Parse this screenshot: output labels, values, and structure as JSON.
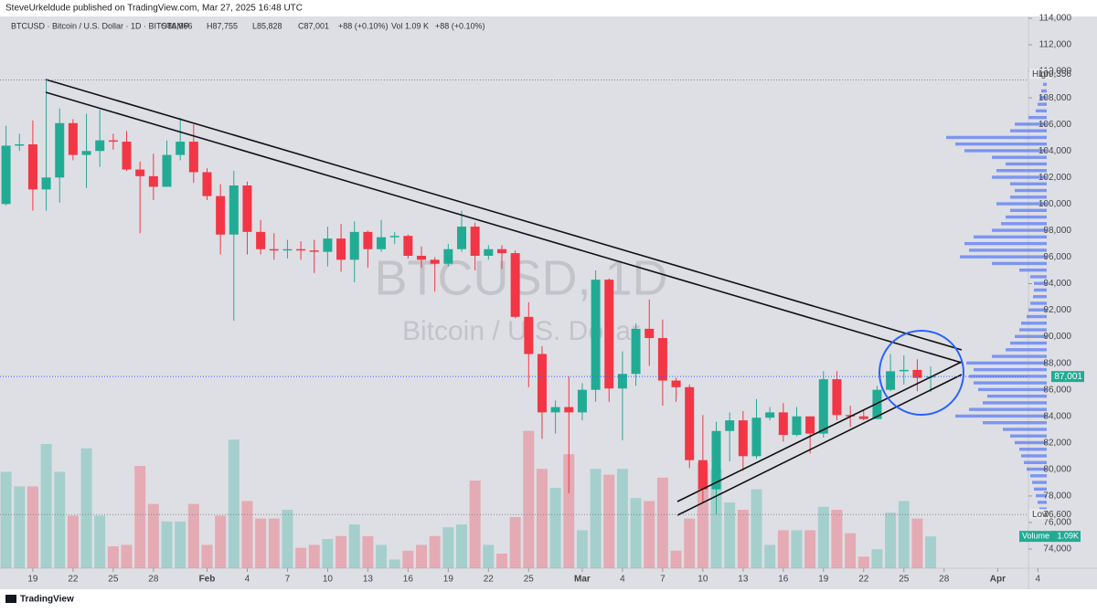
{
  "header": {
    "published": "SteveUrkeldude published on TradingView.com, Mar 27, 2025 16:48 UTC",
    "footer": "TradingView"
  },
  "chart_data": {
    "type": "candlestick",
    "legend": {
      "symbol": "BTCUSD · Bitcoin / U.S. Dollar · 1D · BITSTAMP",
      "open": "O86,966",
      "high": "H87,755",
      "low": "L85,828",
      "close": "C87,001",
      "change": "+88 (+0.10%)",
      "volume": "Vol 1.09 K",
      "volume_change": "+88 (+0.10%)"
    },
    "watermark": [
      "BTCUSD, 1D",
      "Bitcoin / U.S. Dollar"
    ],
    "up_color": "#22ab94",
    "down_color": "#f23645",
    "x": [
      -2,
      -1,
      0,
      1,
      2,
      3,
      4,
      5,
      6,
      7,
      8,
      9,
      10,
      11,
      12,
      13,
      14,
      15,
      16,
      17,
      18,
      19,
      20,
      21,
      22,
      23,
      24,
      25,
      26,
      27,
      28,
      29,
      30,
      31,
      32,
      33,
      34,
      35,
      36,
      37,
      38,
      39,
      40,
      41,
      42,
      43,
      44,
      45,
      46,
      47,
      48,
      49,
      50,
      51,
      52,
      53,
      54,
      55,
      56,
      57,
      58,
      59,
      60,
      61,
      62,
      63,
      64,
      65,
      66,
      67
    ],
    "open": [
      100000,
      104400,
      104500,
      101100,
      102000,
      106100,
      103700,
      104000,
      104800,
      104700,
      102600,
      102100,
      101300,
      103700,
      104700,
      102400,
      100600,
      97700,
      101400,
      97900,
      96600,
      96500,
      96600,
      96500,
      96400,
      97400,
      95800,
      97900,
      96600,
      97500,
      97600,
      96100,
      95800,
      95500,
      96600,
      98300,
      96100,
      96600,
      96300,
      91500,
      88700,
      84300,
      84700,
      84300,
      86000,
      94300,
      86100,
      87200,
      90600,
      89900,
      86700,
      86200,
      80700,
      78500,
      82900,
      83700,
      81000,
      83900,
      84300,
      82600,
      84000,
      82700,
      86800,
      84100,
      84000,
      83800,
      86000,
      87400,
      87500,
      86966
    ],
    "high": [
      105900,
      105300,
      106300,
      109356,
      107200,
      106400,
      106800,
      107100,
      105300,
      105500,
      103200,
      103800,
      104800,
      106500,
      106000,
      102700,
      101500,
      102500,
      101700,
      98800,
      97800,
      97300,
      97200,
      97300,
      98300,
      98500,
      98700,
      98000,
      98800,
      97900,
      97700,
      96800,
      96000,
      97000,
      99500,
      98600,
      96900,
      96900,
      96500,
      92600,
      89300,
      85200,
      87000,
      86500,
      95000,
      94400,
      88900,
      91000,
      92800,
      91300,
      86900,
      86400,
      84100,
      83600,
      84300,
      84400,
      85300,
      84700,
      85000,
      84700,
      84000,
      87400,
      87400,
      84800,
      84500,
      86300,
      88700,
      88600,
      88300,
      87755
    ],
    "low": [
      99900,
      104000,
      99500,
      99500,
      100100,
      103300,
      101200,
      102800,
      104100,
      102500,
      97800,
      100300,
      101300,
      103300,
      101600,
      100300,
      96200,
      91200,
      96200,
      96200,
      95800,
      95900,
      95800,
      94800,
      95300,
      94900,
      94100,
      95200,
      96400,
      97000,
      95900,
      95200,
      93400,
      95300,
      96400,
      95000,
      95800,
      95100,
      91400,
      86200,
      82300,
      82700,
      78200,
      83700,
      85100,
      85100,
      82200,
      86300,
      87800,
      84800,
      85100,
      80100,
      77500,
      76600,
      80600,
      79900,
      80800,
      83700,
      82100,
      82500,
      81200,
      82400,
      83700,
      83200,
      83700,
      83800,
      85900,
      86400,
      85900,
      85828
    ],
    "close": [
      104400,
      104500,
      101100,
      102000,
      106100,
      103700,
      104000,
      104800,
      104700,
      102600,
      102100,
      101300,
      103700,
      104700,
      102400,
      100600,
      97700,
      101400,
      97900,
      96600,
      96500,
      96600,
      96500,
      96400,
      97400,
      95800,
      97900,
      96600,
      97500,
      97600,
      96100,
      95800,
      95500,
      96600,
      98300,
      96100,
      96600,
      96300,
      91500,
      88700,
      84300,
      84700,
      84300,
      86000,
      94300,
      86100,
      87200,
      90600,
      89900,
      86700,
      86200,
      80700,
      78500,
      82900,
      83700,
      81000,
      83900,
      84300,
      82600,
      84000,
      82700,
      86800,
      84100,
      84000,
      83800,
      86000,
      87400,
      87500,
      86900,
      87001
    ],
    "volume": [
      3.3,
      2.8,
      2.8,
      4.25,
      3.3,
      1.8,
      4.1,
      1.8,
      0.75,
      0.8,
      3.5,
      2.2,
      1.6,
      1.6,
      2.2,
      0.8,
      1.8,
      4.4,
      2.3,
      1.7,
      1.7,
      2.0,
      0.7,
      0.8,
      1.0,
      1.1,
      1.5,
      1.1,
      0.8,
      0.3,
      0.6,
      0.8,
      1.1,
      1.4,
      1.5,
      3.0,
      0.8,
      0.5,
      1.75,
      4.7,
      3.4,
      2.75,
      3.9,
      1.3,
      3.4,
      3.2,
      3.4,
      2.4,
      2.3,
      3.1,
      0.6,
      1.7,
      3.6,
      3.4,
      2.25,
      2.0,
      2.7,
      0.8,
      1.3,
      1.3,
      1.3,
      2.1,
      2.0,
      1.2,
      0.4,
      0.65,
      1.9,
      2.3,
      1.7,
      1.09
    ],
    "volume_ylim": [
      0,
      6.25
    ],
    "xlim": [
      -2.45,
      76
    ],
    "xticks": [
      {
        "value": 0,
        "label": "19"
      },
      {
        "value": 3,
        "label": "22"
      },
      {
        "value": 6,
        "label": "25"
      },
      {
        "value": 9,
        "label": "28"
      },
      {
        "value": 13,
        "label": "Feb"
      },
      {
        "value": 16,
        "label": "4"
      },
      {
        "value": 19,
        "label": "7"
      },
      {
        "value": 22,
        "label": "10"
      },
      {
        "value": 25,
        "label": "13"
      },
      {
        "value": 28,
        "label": "16"
      },
      {
        "value": 31,
        "label": "19"
      },
      {
        "value": 34,
        "label": "22"
      },
      {
        "value": 37,
        "label": "25"
      },
      {
        "value": 41,
        "label": "Mar"
      },
      {
        "value": 44,
        "label": "4"
      },
      {
        "value": 47,
        "label": "7"
      },
      {
        "value": 50,
        "label": "10"
      },
      {
        "value": 53,
        "label": "13"
      },
      {
        "value": 56,
        "label": "16"
      },
      {
        "value": 59,
        "label": "19"
      },
      {
        "value": 62,
        "label": "22"
      },
      {
        "value": 65,
        "label": "25"
      },
      {
        "value": 68,
        "label": "28"
      },
      {
        "value": 72,
        "label": "Apr"
      },
      {
        "value": 75,
        "label": "4"
      }
    ],
    "ylim": [
      74000,
      114000
    ],
    "yticks": [
      {
        "value": 74000,
        "label": "74,000"
      },
      {
        "value": 76000,
        "label": "76,000"
      },
      {
        "value": 78000,
        "label": "78,000"
      },
      {
        "value": 80000,
        "label": "80,000"
      },
      {
        "value": 82000,
        "label": "82,000"
      },
      {
        "value": 84000,
        "label": "84,000"
      },
      {
        "value": 86000,
        "label": "86,000"
      },
      {
        "value": 88000,
        "label": "88,000"
      },
      {
        "value": 90000,
        "label": "90,000"
      },
      {
        "value": 92000,
        "label": "92,000"
      },
      {
        "value": 94000,
        "label": "94,000"
      },
      {
        "value": 96000,
        "label": "96,000"
      },
      {
        "value": 98000,
        "label": "98,000"
      },
      {
        "value": 100000,
        "label": "100,000"
      },
      {
        "value": 102000,
        "label": "102,000"
      },
      {
        "value": 104000,
        "label": "104,000"
      },
      {
        "value": 106000,
        "label": "106,000"
      },
      {
        "value": 108000,
        "label": "108,000"
      },
      {
        "value": 110000,
        "label": "110,000"
      },
      {
        "value": 112000,
        "label": "112,000"
      },
      {
        "value": 114000,
        "label": "114,000"
      }
    ],
    "high_marker": {
      "label": "High",
      "value": 109356,
      "value_label": "109,356"
    },
    "low_marker": {
      "label": "Low",
      "value": 76600,
      "value_label": "76,600"
    },
    "last_price": {
      "value": 87001,
      "label": "87,001"
    },
    "volume_badge": {
      "label": "Volume",
      "value": 1.09,
      "value_label": "1.09K"
    },
    "profile_color": "#5b7cf5",
    "profile_prices": [
      76500,
      77000,
      77500,
      78000,
      78500,
      79000,
      79500,
      80000,
      80500,
      81000,
      81500,
      82000,
      82500,
      83000,
      83500,
      84000,
      84500,
      85000,
      85500,
      86000,
      86500,
      87000,
      87500,
      88000,
      88500,
      89000,
      89500,
      90000,
      90500,
      91000,
      91500,
      92000,
      92500,
      93000,
      93500,
      94000,
      94500,
      95000,
      95500,
      96000,
      96500,
      97000,
      97500,
      98000,
      98500,
      99000,
      99500,
      100000,
      100500,
      101000,
      101500,
      102000,
      102500,
      103000,
      103500,
      104000,
      104500,
      105000,
      105500,
      106000,
      106500,
      107000,
      107500,
      108000,
      108500,
      109000
    ],
    "profile_values": [
      5,
      8,
      10,
      12,
      14,
      16,
      18,
      22,
      25,
      28,
      30,
      35,
      40,
      48,
      70,
      100,
      85,
      70,
      65,
      75,
      80,
      85,
      80,
      88,
      60,
      45,
      40,
      35,
      30,
      28,
      22,
      20,
      18,
      15,
      14,
      14,
      18,
      30,
      60,
      95,
      85,
      90,
      80,
      60,
      50,
      45,
      40,
      55,
      40,
      35,
      40,
      60,
      55,
      45,
      60,
      90,
      100,
      110,
      40,
      35,
      20,
      12,
      10,
      8,
      6,
      4
    ],
    "profile_xlim": [
      0,
      110
    ]
  }
}
